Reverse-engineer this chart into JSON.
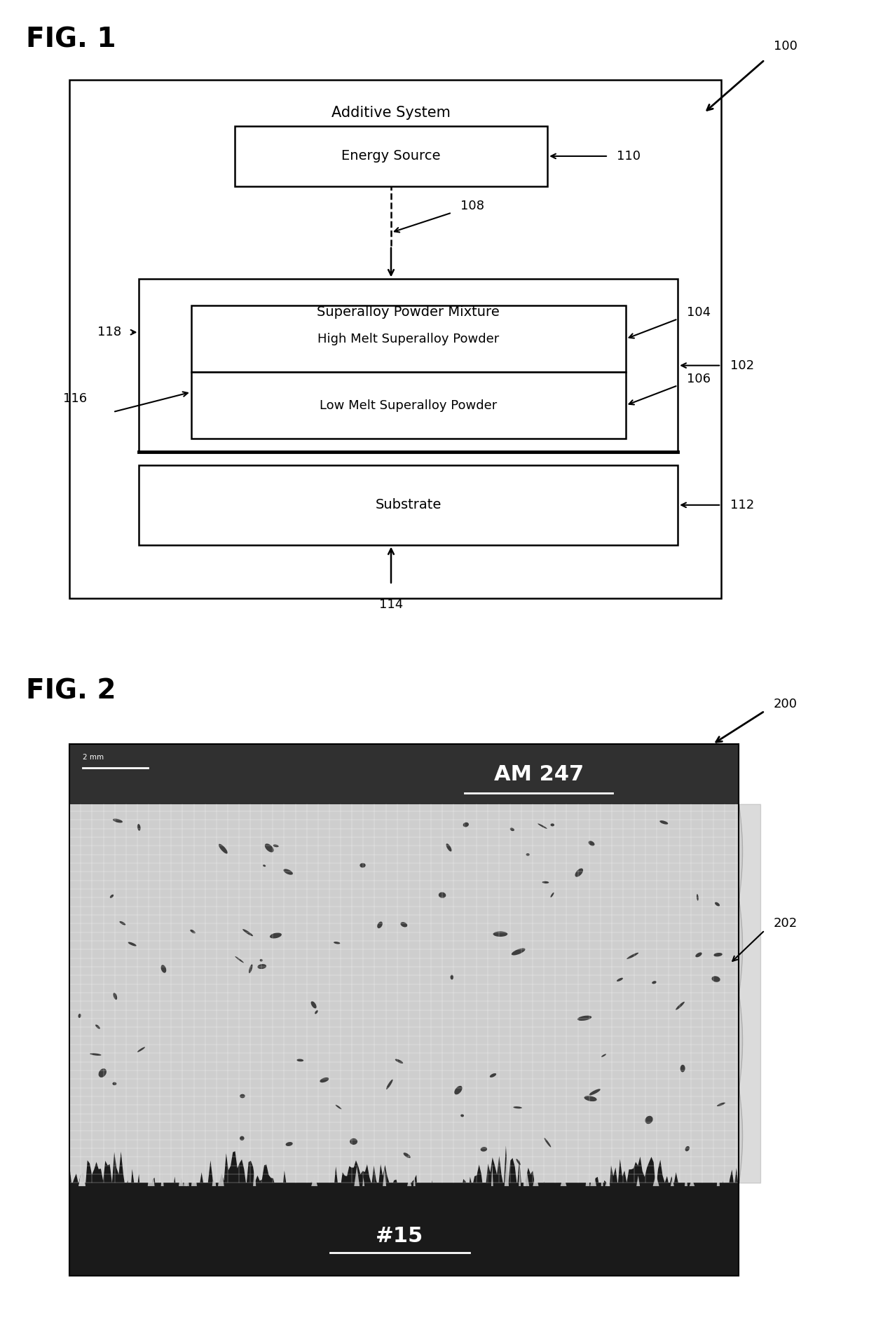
{
  "fig1_title": "FIG. 1",
  "fig2_title": "FIG. 2",
  "background_color": "#ffffff",
  "label_100": "100",
  "label_110": "110",
  "label_108": "108",
  "label_102": "102",
  "label_104": "104",
  "label_106": "106",
  "label_112": "112",
  "label_114": "114",
  "label_116": "116",
  "label_118": "118",
  "label_200": "200",
  "label_202": "202",
  "text_additive_system": "Additive System",
  "text_energy_source": "Energy Source",
  "text_superalloy_powder_mixture": "Superalloy Powder Mixture",
  "text_high_melt": "High Melt Superalloy Powder",
  "text_low_melt": "Low Melt Superalloy Powder",
  "text_substrate": "Substrate",
  "text_am247": "AM 247",
  "text_15": "#15",
  "text_2mm": "2 mm"
}
